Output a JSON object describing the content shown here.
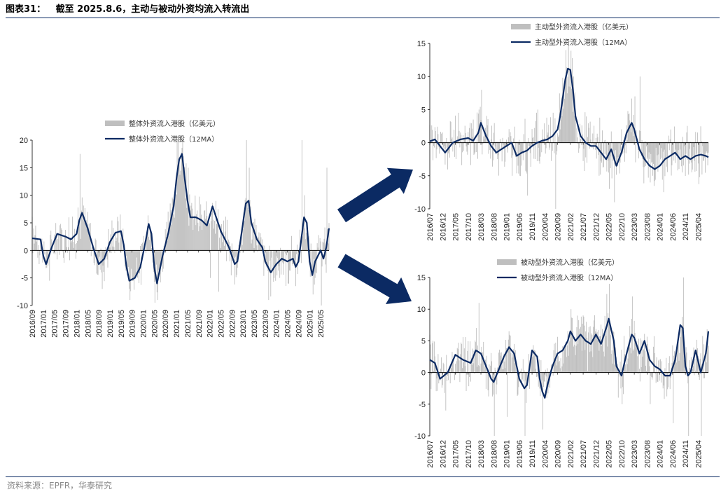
{
  "header": {
    "label": "图表31：",
    "title": "截至 2025.8.6，主动与被动外资均流入转流出"
  },
  "footer": {
    "source": "资料来源：EPFR，华泰研究"
  },
  "colors": {
    "bar": "#bfbfbf",
    "line": "#0b2a63",
    "arrow": "#0b2a63",
    "rule": "#0b2a63"
  },
  "chart_data": [
    {
      "id": "overall",
      "type": "bar+line",
      "legend": [
        "整体外资流入港股（亿美元）",
        "整体外资流入港股（12MA）"
      ],
      "legend_position": "top-center",
      "ylim": [
        -10,
        20
      ],
      "yticks": [
        -10,
        -5,
        0,
        5,
        10,
        15,
        20
      ],
      "xlim": [
        "2016/09",
        "2025/08"
      ],
      "xticks": [
        "2016/09",
        "2017/01",
        "2017/05",
        "2017/09",
        "2018/01",
        "2018/05",
        "2018/09",
        "2019/01",
        "2019/05",
        "2019/09",
        "2020/01",
        "2020/05",
        "2020/09",
        "2021/01",
        "2021/05",
        "2021/09",
        "2022/01",
        "2022/05",
        "2022/09",
        "2023/01",
        "2023/05",
        "2023/09",
        "2024/01",
        "2024/05",
        "2024/09",
        "2025/01",
        "2025/05"
      ],
      "ma_series": {
        "name": "整体外资流入港股（12MA）",
        "points": [
          [
            "2016/09",
            2.2
          ],
          [
            "2016/12",
            2.0
          ],
          [
            "2017/01",
            -1.0
          ],
          [
            "2017/02",
            -2.5
          ],
          [
            "2017/04",
            0.5
          ],
          [
            "2017/06",
            3.0
          ],
          [
            "2017/09",
            2.5
          ],
          [
            "2017/11",
            2.0
          ],
          [
            "2018/01",
            3.0
          ],
          [
            "2018/02",
            5.5
          ],
          [
            "2018/03",
            6.8
          ],
          [
            "2018/05",
            4.0
          ],
          [
            "2018/07",
            0.5
          ],
          [
            "2018/09",
            -2.5
          ],
          [
            "2018/11",
            -1.5
          ],
          [
            "2019/01",
            1.5
          ],
          [
            "2019/03",
            3.2
          ],
          [
            "2019/05",
            3.5
          ],
          [
            "2019/06",
            1.0
          ],
          [
            "2019/07",
            -3.0
          ],
          [
            "2019/08",
            -5.5
          ],
          [
            "2019/10",
            -5.0
          ],
          [
            "2019/12",
            -3.0
          ],
          [
            "2020/02",
            2.0
          ],
          [
            "2020/03",
            4.8
          ],
          [
            "2020/04",
            3.0
          ],
          [
            "2020/05",
            -3.0
          ],
          [
            "2020/06",
            -6.0
          ],
          [
            "2020/08",
            -1.0
          ],
          [
            "2020/10",
            3.0
          ],
          [
            "2020/12",
            8.0
          ],
          [
            "2021/01",
            13.0
          ],
          [
            "2021/02",
            16.5
          ],
          [
            "2021/03",
            17.5
          ],
          [
            "2021/04",
            13.0
          ],
          [
            "2021/05",
            9.0
          ],
          [
            "2021/06",
            6.0
          ],
          [
            "2021/08",
            6.0
          ],
          [
            "2021/10",
            5.5
          ],
          [
            "2021/12",
            4.5
          ],
          [
            "2022/02",
            8.0
          ],
          [
            "2022/03",
            6.5
          ],
          [
            "2022/05",
            3.5
          ],
          [
            "2022/07",
            1.5
          ],
          [
            "2022/08",
            0.5
          ],
          [
            "2022/10",
            -2.5
          ],
          [
            "2022/11",
            -2.0
          ],
          [
            "2023/01",
            5.0
          ],
          [
            "2023/02",
            8.5
          ],
          [
            "2023/03",
            9.0
          ],
          [
            "2023/04",
            5.0
          ],
          [
            "2023/06",
            2.0
          ],
          [
            "2023/08",
            0.5
          ],
          [
            "2023/09",
            -2.0
          ],
          [
            "2023/11",
            -4.0
          ],
          [
            "2024/01",
            -2.5
          ],
          [
            "2024/03",
            -1.5
          ],
          [
            "2024/05",
            -2.0
          ],
          [
            "2024/07",
            -1.5
          ],
          [
            "2024/08",
            -3.0
          ],
          [
            "2024/09",
            -2.0
          ],
          [
            "2024/10",
            2.0
          ],
          [
            "2024/11",
            6.0
          ],
          [
            "2024/12",
            5.0
          ],
          [
            "2025/01",
            -2.0
          ],
          [
            "2025/02",
            -4.5
          ],
          [
            "2025/03",
            -2.0
          ],
          [
            "2025/04",
            -1.0
          ],
          [
            "2025/05",
            0.0
          ],
          [
            "2025/06",
            -1.5
          ],
          [
            "2025/07",
            0.5
          ],
          [
            "2025/08",
            4.0
          ]
        ]
      },
      "bar_series": {
        "name": "整体外资流入港股（亿美元）",
        "peaks": [
          [
            "2016/10",
            4.5
          ],
          [
            "2017/03",
            -5.5
          ],
          [
            "2017/10",
            6.0
          ],
          [
            "2018/02",
            17.5
          ],
          [
            "2018/10",
            -7.0
          ],
          [
            "2019/08",
            -9.0
          ],
          [
            "2020/05",
            -9.5
          ],
          [
            "2020/06",
            -9.0
          ],
          [
            "2021/01",
            20.0
          ],
          [
            "2021/03",
            20.0
          ],
          [
            "2021/05",
            15.0
          ],
          [
            "2022/01",
            -5.0
          ],
          [
            "2022/04",
            -7.5
          ],
          [
            "2023/02",
            20.0
          ],
          [
            "2023/03",
            15.0
          ],
          [
            "2023/10",
            -9.0
          ],
          [
            "2024/02",
            -5.0
          ],
          [
            "2024/05",
            -6.0
          ],
          [
            "2024/10",
            20.0
          ],
          [
            "2024/11",
            10.0
          ],
          [
            "2025/02",
            -8.0
          ],
          [
            "2025/05",
            -10.0
          ],
          [
            "2025/07",
            15.0
          ]
        ]
      }
    },
    {
      "id": "active",
      "type": "bar+line",
      "legend": [
        "主动型外资流入港股（亿美元）",
        "主动型外资流入港股（12MA）"
      ],
      "legend_position": "top-center",
      "ylim": [
        -10,
        15
      ],
      "yticks": [
        -10,
        -5,
        0,
        5,
        10,
        15
      ],
      "xlim": [
        "2016/07",
        "2025/08"
      ],
      "xticks": [
        "2016/07",
        "2016/12",
        "2017/05",
        "2017/10",
        "2018/03",
        "2018/08",
        "2019/01",
        "2019/06",
        "2019/11",
        "2020/04",
        "2020/09",
        "2021/02",
        "2021/07",
        "2021/12",
        "2022/05",
        "2022/10",
        "2023/03",
        "2023/08",
        "2024/01",
        "2024/06",
        "2024/11",
        "2025/04"
      ],
      "ma_series": {
        "name": "主动型外资流入港股（12MA）",
        "points": [
          [
            "2016/07",
            0.2
          ],
          [
            "2016/09",
            0.5
          ],
          [
            "2016/11",
            -0.5
          ],
          [
            "2017/01",
            -1.5
          ],
          [
            "2017/04",
            0.0
          ],
          [
            "2017/07",
            0.5
          ],
          [
            "2017/10",
            0.7
          ],
          [
            "2017/12",
            0.3
          ],
          [
            "2018/02",
            1.5
          ],
          [
            "2018/03",
            3.0
          ],
          [
            "2018/05",
            1.0
          ],
          [
            "2018/07",
            -0.5
          ],
          [
            "2018/09",
            -1.5
          ],
          [
            "2018/11",
            -1.0
          ],
          [
            "2019/01",
            -0.5
          ],
          [
            "2019/03",
            0.0
          ],
          [
            "2019/04",
            -1.0
          ],
          [
            "2019/05",
            -2.0
          ],
          [
            "2019/07",
            -1.5
          ],
          [
            "2019/09",
            -1.2
          ],
          [
            "2019/11",
            -0.5
          ],
          [
            "2020/01",
            0.0
          ],
          [
            "2020/03",
            0.3
          ],
          [
            "2020/05",
            0.5
          ],
          [
            "2020/07",
            1.0
          ],
          [
            "2020/09",
            2.0
          ],
          [
            "2020/10",
            4.0
          ],
          [
            "2020/12",
            9.5
          ],
          [
            "2021/01",
            11.2
          ],
          [
            "2021/02",
            11.0
          ],
          [
            "2021/03",
            8.0
          ],
          [
            "2021/04",
            4.0
          ],
          [
            "2021/06",
            1.0
          ],
          [
            "2021/08",
            0.0
          ],
          [
            "2021/10",
            -0.5
          ],
          [
            "2021/12",
            -0.5
          ],
          [
            "2022/02",
            -1.5
          ],
          [
            "2022/04",
            -2.5
          ],
          [
            "2022/06",
            -1.0
          ],
          [
            "2022/08",
            -3.5
          ],
          [
            "2022/10",
            -1.5
          ],
          [
            "2022/12",
            1.5
          ],
          [
            "2023/02",
            3.0
          ],
          [
            "2023/03",
            2.0
          ],
          [
            "2023/05",
            -1.0
          ],
          [
            "2023/07",
            -2.5
          ],
          [
            "2023/09",
            -3.5
          ],
          [
            "2023/11",
            -4.0
          ],
          [
            "2024/01",
            -3.5
          ],
          [
            "2024/03",
            -2.5
          ],
          [
            "2024/05",
            -2.0
          ],
          [
            "2024/07",
            -1.5
          ],
          [
            "2024/09",
            -2.5
          ],
          [
            "2024/11",
            -2.0
          ],
          [
            "2025/01",
            -2.5
          ],
          [
            "2025/03",
            -2.0
          ],
          [
            "2025/05",
            -1.8
          ],
          [
            "2025/07",
            -2.0
          ],
          [
            "2025/08",
            -2.2
          ]
        ]
      },
      "bar_series": {
        "name": "主动型外资流入港股（亿美元）",
        "peaks": [
          [
            "2018/02",
            5.0
          ],
          [
            "2018/03",
            8.0
          ],
          [
            "2019/03",
            -5.0
          ],
          [
            "2019/06",
            -5.0
          ],
          [
            "2019/09",
            -8.0
          ],
          [
            "2020/01",
            5.0
          ],
          [
            "2020/08",
            -10.0
          ],
          [
            "2020/12",
            14.0
          ],
          [
            "2021/01",
            15.0
          ],
          [
            "2021/03",
            10.0
          ],
          [
            "2022/01",
            -5.0
          ],
          [
            "2022/05",
            -7.0
          ],
          [
            "2022/07",
            -9.0
          ],
          [
            "2023/03",
            7.0
          ],
          [
            "2023/05",
            10.0
          ],
          [
            "2023/10",
            -5.0
          ]
        ]
      }
    },
    {
      "id": "passive",
      "type": "bar+line",
      "legend": [
        "被动型外资流入港股（亿美元）",
        "被动型外资流入港股（12MA）"
      ],
      "legend_position": "top-center",
      "ylim": [
        -10,
        15
      ],
      "yticks": [
        -10,
        -5,
        0,
        5,
        10,
        15
      ],
      "xlim": [
        "2016/07",
        "2025/08"
      ],
      "xticks": [
        "2016/07",
        "2016/12",
        "2017/05",
        "2017/10",
        "2018/03",
        "2018/08",
        "2019/01",
        "2019/06",
        "2019/11",
        "2020/04",
        "2020/09",
        "2021/02",
        "2021/07",
        "2021/12",
        "2022/05",
        "2022/10",
        "2023/03",
        "2023/08",
        "2024/01",
        "2024/06",
        "2024/11",
        "2025/04"
      ],
      "ma_series": {
        "name": "被动型外资流入港股（12MA）",
        "points": [
          [
            "2016/07",
            2.0
          ],
          [
            "2016/09",
            1.5
          ],
          [
            "2016/11",
            -1.0
          ],
          [
            "2017/02",
            0.0
          ],
          [
            "2017/05",
            2.8
          ],
          [
            "2017/08",
            2.0
          ],
          [
            "2017/11",
            1.5
          ],
          [
            "2018/01",
            3.5
          ],
          [
            "2018/03",
            3.0
          ],
          [
            "2018/05",
            1.0
          ],
          [
            "2018/07",
            -1.0
          ],
          [
            "2018/08",
            -1.5
          ],
          [
            "2018/10",
            0.5
          ],
          [
            "2018/12",
            2.5
          ],
          [
            "2019/02",
            4.0
          ],
          [
            "2019/04",
            3.0
          ],
          [
            "2019/06",
            -1.0
          ],
          [
            "2019/08",
            -2.5
          ],
          [
            "2019/09",
            -2.0
          ],
          [
            "2019/11",
            3.5
          ],
          [
            "2020/01",
            2.5
          ],
          [
            "2020/02",
            -1.0
          ],
          [
            "2020/03",
            -3.0
          ],
          [
            "2020/04",
            -4.0
          ],
          [
            "2020/05",
            -2.0
          ],
          [
            "2020/07",
            1.0
          ],
          [
            "2020/09",
            3.0
          ],
          [
            "2020/11",
            3.5
          ],
          [
            "2021/01",
            5.0
          ],
          [
            "2021/02",
            6.5
          ],
          [
            "2021/04",
            5.0
          ],
          [
            "2021/06",
            6.0
          ],
          [
            "2021/08",
            5.0
          ],
          [
            "2021/10",
            4.5
          ],
          [
            "2021/12",
            6.0
          ],
          [
            "2022/02",
            4.5
          ],
          [
            "2022/04",
            7.0
          ],
          [
            "2022/05",
            8.5
          ],
          [
            "2022/07",
            5.0
          ],
          [
            "2022/08",
            1.0
          ],
          [
            "2022/10",
            -0.5
          ],
          [
            "2022/12",
            3.0
          ],
          [
            "2023/02",
            6.0
          ],
          [
            "2023/03",
            5.5
          ],
          [
            "2023/05",
            3.0
          ],
          [
            "2023/07",
            5.0
          ],
          [
            "2023/09",
            2.0
          ],
          [
            "2023/11",
            1.0
          ],
          [
            "2024/01",
            0.5
          ],
          [
            "2024/03",
            -0.5
          ],
          [
            "2024/05",
            -0.5
          ],
          [
            "2024/07",
            2.0
          ],
          [
            "2024/09",
            7.5
          ],
          [
            "2024/10",
            7.0
          ],
          [
            "2024/11",
            1.0
          ],
          [
            "2024/12",
            -0.5
          ],
          [
            "2025/01",
            0.0
          ],
          [
            "2025/03",
            3.5
          ],
          [
            "2025/05",
            0.0
          ],
          [
            "2025/07",
            3.0
          ],
          [
            "2025/08",
            6.5
          ]
        ]
      },
      "bar_series": {
        "name": "被动型外资流入港股（亿美元）",
        "peaks": [
          [
            "2016/08",
            5.0
          ],
          [
            "2017/01",
            -6.0
          ],
          [
            "2018/02",
            11.0
          ],
          [
            "2018/08",
            -10.0
          ],
          [
            "2019/01",
            -7.0
          ],
          [
            "2019/08",
            -10.0
          ],
          [
            "2020/03",
            -9.0
          ],
          [
            "2021/02",
            10.0
          ],
          [
            "2021/08",
            8.0
          ],
          [
            "2022/05",
            14.0
          ],
          [
            "2022/10",
            -5.0
          ],
          [
            "2023/02",
            12.0
          ],
          [
            "2023/09",
            -5.0
          ],
          [
            "2024/06",
            -8.0
          ],
          [
            "2024/10",
            15.0
          ],
          [
            "2024/12",
            -10.0
          ],
          [
            "2025/05",
            -10.0
          ],
          [
            "2025/08",
            15.0
          ]
        ]
      }
    }
  ]
}
